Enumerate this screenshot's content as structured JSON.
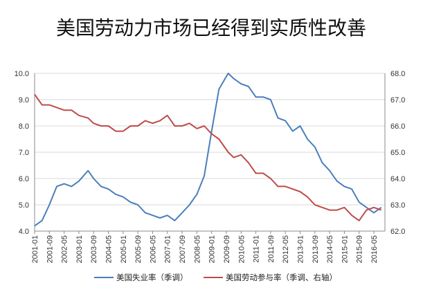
{
  "chart_data": {
    "type": "line",
    "title": "美国劳动力市场已经得到实质性改善",
    "x_ticks": [
      "2001-01",
      "2001-09",
      "2002-05",
      "2003-01",
      "2003-09",
      "2004-05",
      "2005-01",
      "2005-09",
      "2006-05",
      "2007-01",
      "2007-09",
      "2008-05",
      "2009-01",
      "2009-09",
      "2010-05",
      "2011-01",
      "2011-09",
      "2012-05",
      "2013-01",
      "2013-09",
      "2014-05",
      "2015-01",
      "2015-09",
      "2016-05"
    ],
    "y_left": {
      "ticks": [
        "4.0",
        "5.0",
        "6.0",
        "7.0",
        "8.0",
        "9.0",
        "10.0"
      ],
      "ylim": [
        4,
        10
      ]
    },
    "y_right": {
      "ticks": [
        "62.0",
        "63.0",
        "64.0",
        "65.0",
        "66.0",
        "67.0",
        "68.0"
      ],
      "ylim": [
        62,
        68
      ]
    },
    "grid": "horizontal",
    "legend_position": "bottom",
    "series": [
      {
        "name": "美国失业率（季调）",
        "axis": "left",
        "color": "#4a7ebb",
        "x": [
          "2001-01",
          "2001-05",
          "2001-09",
          "2002-01",
          "2002-05",
          "2002-09",
          "2003-01",
          "2003-06",
          "2003-09",
          "2004-01",
          "2004-05",
          "2004-09",
          "2005-01",
          "2005-05",
          "2005-09",
          "2006-01",
          "2006-05",
          "2006-09",
          "2007-01",
          "2007-05",
          "2007-09",
          "2008-01",
          "2008-05",
          "2008-09",
          "2009-01",
          "2009-05",
          "2009-10",
          "2010-01",
          "2010-05",
          "2010-09",
          "2011-01",
          "2011-05",
          "2011-09",
          "2012-01",
          "2012-05",
          "2012-09",
          "2013-01",
          "2013-05",
          "2013-09",
          "2014-01",
          "2014-05",
          "2014-09",
          "2015-01",
          "2015-05",
          "2015-09",
          "2016-01",
          "2016-05",
          "2016-09"
        ],
        "values": [
          4.2,
          4.4,
          5.0,
          5.7,
          5.8,
          5.7,
          5.9,
          6.3,
          6.0,
          5.7,
          5.6,
          5.4,
          5.3,
          5.1,
          5.0,
          4.7,
          4.6,
          4.5,
          4.6,
          4.4,
          4.7,
          5.0,
          5.4,
          6.1,
          7.8,
          9.4,
          10.0,
          9.8,
          9.6,
          9.5,
          9.1,
          9.1,
          9.0,
          8.3,
          8.2,
          7.8,
          8.0,
          7.5,
          7.2,
          6.6,
          6.3,
          5.9,
          5.7,
          5.6,
          5.1,
          4.9,
          4.7,
          4.9
        ]
      },
      {
        "name": "美国劳动参与率（季调、右轴）",
        "axis": "right",
        "color": "#be4b48",
        "x": [
          "2001-01",
          "2001-05",
          "2001-09",
          "2002-01",
          "2002-05",
          "2002-09",
          "2003-01",
          "2003-06",
          "2003-09",
          "2004-01",
          "2004-05",
          "2004-09",
          "2005-01",
          "2005-05",
          "2005-09",
          "2006-01",
          "2006-05",
          "2006-09",
          "2007-01",
          "2007-05",
          "2007-09",
          "2008-01",
          "2008-05",
          "2008-09",
          "2009-01",
          "2009-05",
          "2009-10",
          "2010-01",
          "2010-05",
          "2010-09",
          "2011-01",
          "2011-05",
          "2011-09",
          "2012-01",
          "2012-05",
          "2012-09",
          "2013-01",
          "2013-05",
          "2013-09",
          "2014-01",
          "2014-05",
          "2014-09",
          "2015-01",
          "2015-05",
          "2015-09",
          "2016-01",
          "2016-05",
          "2016-09"
        ],
        "values": [
          67.2,
          66.8,
          66.8,
          66.7,
          66.6,
          66.6,
          66.4,
          66.3,
          66.1,
          66.0,
          66.0,
          65.8,
          65.8,
          66.0,
          66.0,
          66.2,
          66.1,
          66.2,
          66.4,
          66.0,
          66.0,
          66.1,
          65.9,
          66.0,
          65.7,
          65.5,
          65.0,
          64.8,
          64.9,
          64.6,
          64.2,
          64.2,
          64.0,
          63.7,
          63.7,
          63.6,
          63.5,
          63.3,
          63.0,
          62.9,
          62.8,
          62.8,
          62.9,
          62.6,
          62.4,
          62.8,
          62.9,
          62.8
        ]
      }
    ]
  }
}
